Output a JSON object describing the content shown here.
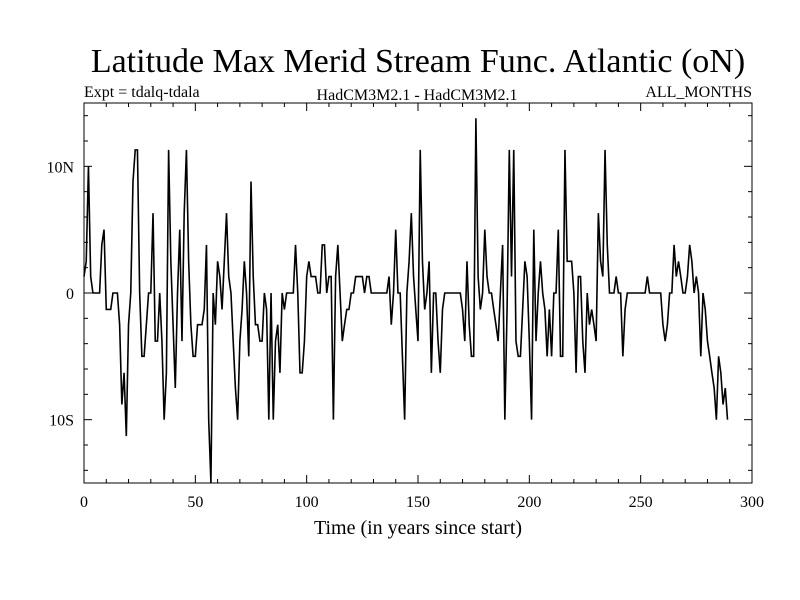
{
  "chart_data": {
    "type": "line",
    "title": "Latitude Max Merid Stream Func. Atlantic (oN)",
    "subtitle_left": "Expt = tdalq-tdala",
    "subtitle_center": "HadCM3M2.1 - HadCM3M2.1",
    "subtitle_right": "ALL_MONTHS",
    "xlabel": "Time (in years since start)",
    "ylabel": "",
    "xlim": [
      0,
      300
    ],
    "ylim": [
      -15,
      15
    ],
    "x_ticks": [
      0,
      50,
      100,
      150,
      200,
      250,
      300
    ],
    "x_tick_labels": [
      "0",
      "50",
      "100",
      "150",
      "200",
      "250",
      "300"
    ],
    "y_ticks": [
      -10,
      0,
      10
    ],
    "y_tick_labels": [
      "10S",
      "0",
      "10N"
    ],
    "grid": false,
    "series": [
      {
        "name": "Latitude Max Merid Stream Func. Atlantic",
        "x_start": 0,
        "x_step": 1,
        "values": [
          1.3,
          2.5,
          10,
          1.3,
          0,
          0,
          0,
          0,
          3.8,
          5,
          -1.3,
          -1.3,
          -1.3,
          0,
          0,
          0,
          -2.5,
          -8.8,
          -6.3,
          -11.3,
          -2.5,
          0,
          8.8,
          11.3,
          11.3,
          0,
          -5,
          -5,
          -2.5,
          0,
          0,
          6.3,
          -3.8,
          -3.8,
          0,
          -3.8,
          -10,
          -6.3,
          11.3,
          2.5,
          -2.5,
          -7.5,
          0,
          5,
          -3.8,
          6.3,
          11.3,
          2.5,
          -2.5,
          -5,
          -5,
          -2.5,
          -2.5,
          -2.5,
          -1.3,
          3.8,
          -10,
          -15,
          0,
          -2.5,
          2.5,
          1.3,
          -1.3,
          2.5,
          6.3,
          1.3,
          0,
          -3.8,
          -7.5,
          -10,
          -3.8,
          -1.3,
          2.5,
          0,
          -5,
          8.8,
          1.3,
          -2.5,
          -2.5,
          -3.8,
          -3.8,
          0,
          -1.3,
          -10,
          0,
          -10,
          -3.8,
          -2.5,
          -6.3,
          0,
          -1.3,
          0,
          0,
          0,
          0,
          3.8,
          0,
          -6.3,
          -6.3,
          -3.8,
          1.3,
          2.5,
          1.3,
          1.3,
          1.3,
          0,
          0,
          3.8,
          3.8,
          0,
          1.3,
          1.3,
          -10,
          1.3,
          3.8,
          0,
          -3.8,
          -2.5,
          -1.3,
          -1.3,
          0,
          0,
          1.3,
          1.3,
          1.3,
          1.3,
          0,
          1.3,
          1.3,
          0,
          0,
          0,
          0,
          0,
          0,
          0,
          0,
          1.3,
          -2.5,
          0,
          5,
          0,
          0,
          -5,
          -10,
          0,
          2.5,
          6.3,
          1.3,
          -1.3,
          -3.8,
          11.3,
          2.5,
          -1.3,
          0,
          2.5,
          -6.3,
          0,
          0,
          -3.8,
          -6.3,
          -1.3,
          0,
          0,
          0,
          0,
          0,
          0,
          0,
          0,
          -1.3,
          -3.8,
          2.5,
          -2.5,
          -5,
          -5,
          13.8,
          1.3,
          -1.3,
          0,
          5,
          1.3,
          0,
          0,
          -1.3,
          -2.5,
          -3.8,
          0,
          3.8,
          -10,
          -1.3,
          11.3,
          1.3,
          11.3,
          -3.8,
          -5,
          -5,
          -1.3,
          2.5,
          1.3,
          -3.8,
          -10,
          5,
          -3.8,
          0,
          2.5,
          0,
          -1.3,
          -5,
          -1.3,
          -5,
          0,
          0,
          5,
          -5,
          -5,
          11.3,
          2.5,
          2.5,
          2.5,
          0,
          -6.3,
          1.3,
          1.3,
          -3.8,
          -6.3,
          0,
          -2.5,
          -1.3,
          -2.5,
          -3.8,
          6.3,
          2.5,
          1.3,
          11.3,
          3.8,
          0,
          0,
          0,
          1.3,
          0,
          0,
          -5,
          -1.3,
          0,
          0,
          0,
          0,
          0,
          0,
          0,
          0,
          0,
          1.3,
          0,
          0,
          0,
          0,
          0,
          0,
          -2.5,
          -3.8,
          -2.5,
          0,
          0,
          3.8,
          1.3,
          2.5,
          1.3,
          0,
          0,
          1.3,
          3.8,
          2.5,
          0,
          1.3,
          0,
          -5,
          0,
          -1.3,
          -3.8,
          -5,
          -6.3,
          -7.5,
          -10,
          -5,
          -6.3,
          -8.8,
          -7.5,
          -10
        ],
        "values_note": "estimated from gridlines"
      }
    ]
  }
}
